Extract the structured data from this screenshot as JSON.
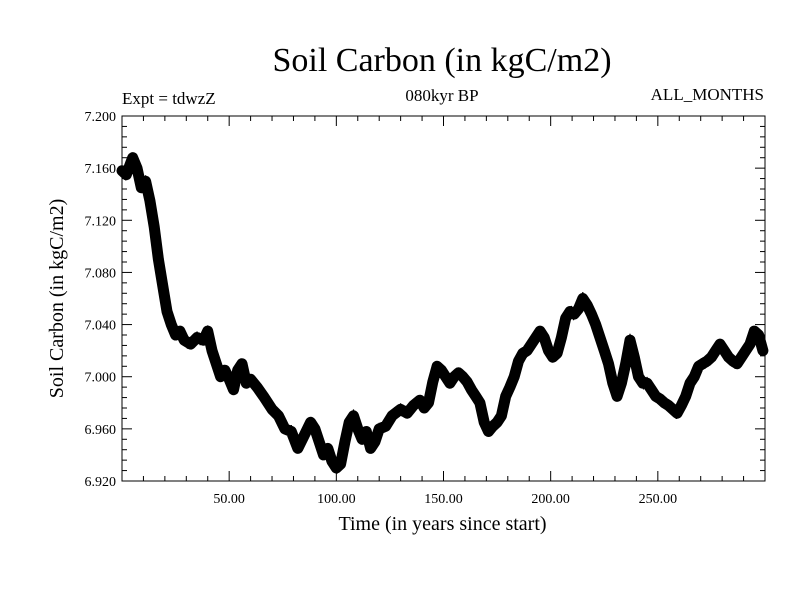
{
  "header": {
    "title": "Soil Carbon (in kgC/m2)",
    "expt": "Expt = tdwzZ",
    "subtitle": "080kyr BP",
    "months": "ALL_MONTHS"
  },
  "chart_data": {
    "type": "line",
    "title": "Soil Carbon (in kgC/m2)",
    "xlabel": "Time (in years since start)",
    "ylabel": "Soil Carbon (in kgC/m2)",
    "xlim": [
      0,
      300
    ],
    "ylim": [
      6.92,
      7.2
    ],
    "x_ticks": [
      50,
      100,
      150,
      200,
      250
    ],
    "x_tick_labels": [
      "50.00",
      "100.00",
      "150.00",
      "200.00",
      "250.00"
    ],
    "y_ticks": [
      6.92,
      6.96,
      7.0,
      7.04,
      7.08,
      7.12,
      7.16,
      7.2
    ],
    "y_tick_labels": [
      "6.920",
      "6.960",
      "7.000",
      "7.040",
      "7.080",
      "7.120",
      "7.160",
      "7.200"
    ],
    "grid": false,
    "line_color": "#000000",
    "series": [
      {
        "x": [
          0,
          2,
          5,
          7,
          9,
          11,
          13,
          15,
          17,
          19,
          21,
          23,
          25,
          27,
          29,
          32,
          35,
          38,
          40,
          42,
          44,
          46,
          48,
          50,
          52,
          54,
          56,
          58,
          60,
          63,
          66,
          70,
          73,
          76,
          79,
          82,
          85,
          88,
          90,
          92,
          94,
          96,
          98,
          100,
          102,
          104,
          106,
          108,
          110,
          112,
          114,
          116,
          118,
          120,
          123,
          126,
          130,
          133,
          136,
          139,
          141,
          143,
          145,
          147,
          149,
          151,
          153,
          155,
          157,
          159,
          161,
          163,
          165,
          167,
          169,
          171,
          173,
          175,
          177,
          179,
          181,
          183,
          185,
          187,
          189,
          191,
          193,
          195,
          197,
          199,
          201,
          203,
          205,
          207,
          209,
          211,
          213,
          215,
          217,
          219,
          221,
          223,
          225,
          227,
          229,
          231,
          233,
          235,
          237,
          239,
          241,
          243,
          245,
          247,
          249,
          251,
          253,
          255,
          257,
          259,
          261,
          263,
          265,
          267,
          269,
          271,
          273,
          275,
          277,
          279,
          281,
          283,
          285,
          287,
          289,
          291,
          293,
          295,
          297,
          299
        ],
        "values": [
          7.158,
          7.155,
          7.168,
          7.16,
          7.145,
          7.15,
          7.135,
          7.115,
          7.09,
          7.07,
          7.05,
          7.04,
          7.032,
          7.035,
          7.028,
          7.025,
          7.03,
          7.028,
          7.035,
          7.02,
          7.01,
          7.0,
          7.005,
          6.998,
          6.99,
          7.005,
          7.01,
          6.995,
          6.998,
          6.992,
          6.985,
          6.975,
          6.97,
          6.96,
          6.958,
          6.945,
          6.955,
          6.965,
          6.96,
          6.95,
          6.94,
          6.945,
          6.935,
          6.93,
          6.933,
          6.95,
          6.965,
          6.97,
          6.96,
          6.952,
          6.958,
          6.945,
          6.95,
          6.96,
          6.962,
          6.97,
          6.975,
          6.972,
          6.978,
          6.982,
          6.976,
          6.98,
          6.996,
          7.008,
          7.005,
          7.0,
          6.995,
          7.0,
          7.003,
          7.0,
          6.996,
          6.99,
          6.985,
          6.98,
          6.965,
          6.958,
          6.962,
          6.965,
          6.97,
          6.985,
          6.992,
          7.0,
          7.012,
          7.018,
          7.02,
          7.025,
          7.03,
          7.035,
          7.03,
          7.02,
          7.015,
          7.018,
          7.03,
          7.045,
          7.05,
          7.048,
          7.052,
          7.06,
          7.055,
          7.048,
          7.04,
          7.03,
          7.02,
          7.01,
          6.995,
          6.985,
          6.995,
          7.01,
          7.028,
          7.015,
          7.0,
          6.995,
          6.995,
          6.99,
          6.985,
          6.983,
          6.98,
          6.978,
          6.975,
          6.972,
          6.978,
          6.985,
          6.995,
          7.0,
          7.008,
          7.01,
          7.012,
          7.015,
          7.02,
          7.025,
          7.02,
          7.015,
          7.012,
          7.01,
          7.015,
          7.02,
          7.025,
          7.035,
          7.032,
          7.02
        ]
      }
    ]
  }
}
